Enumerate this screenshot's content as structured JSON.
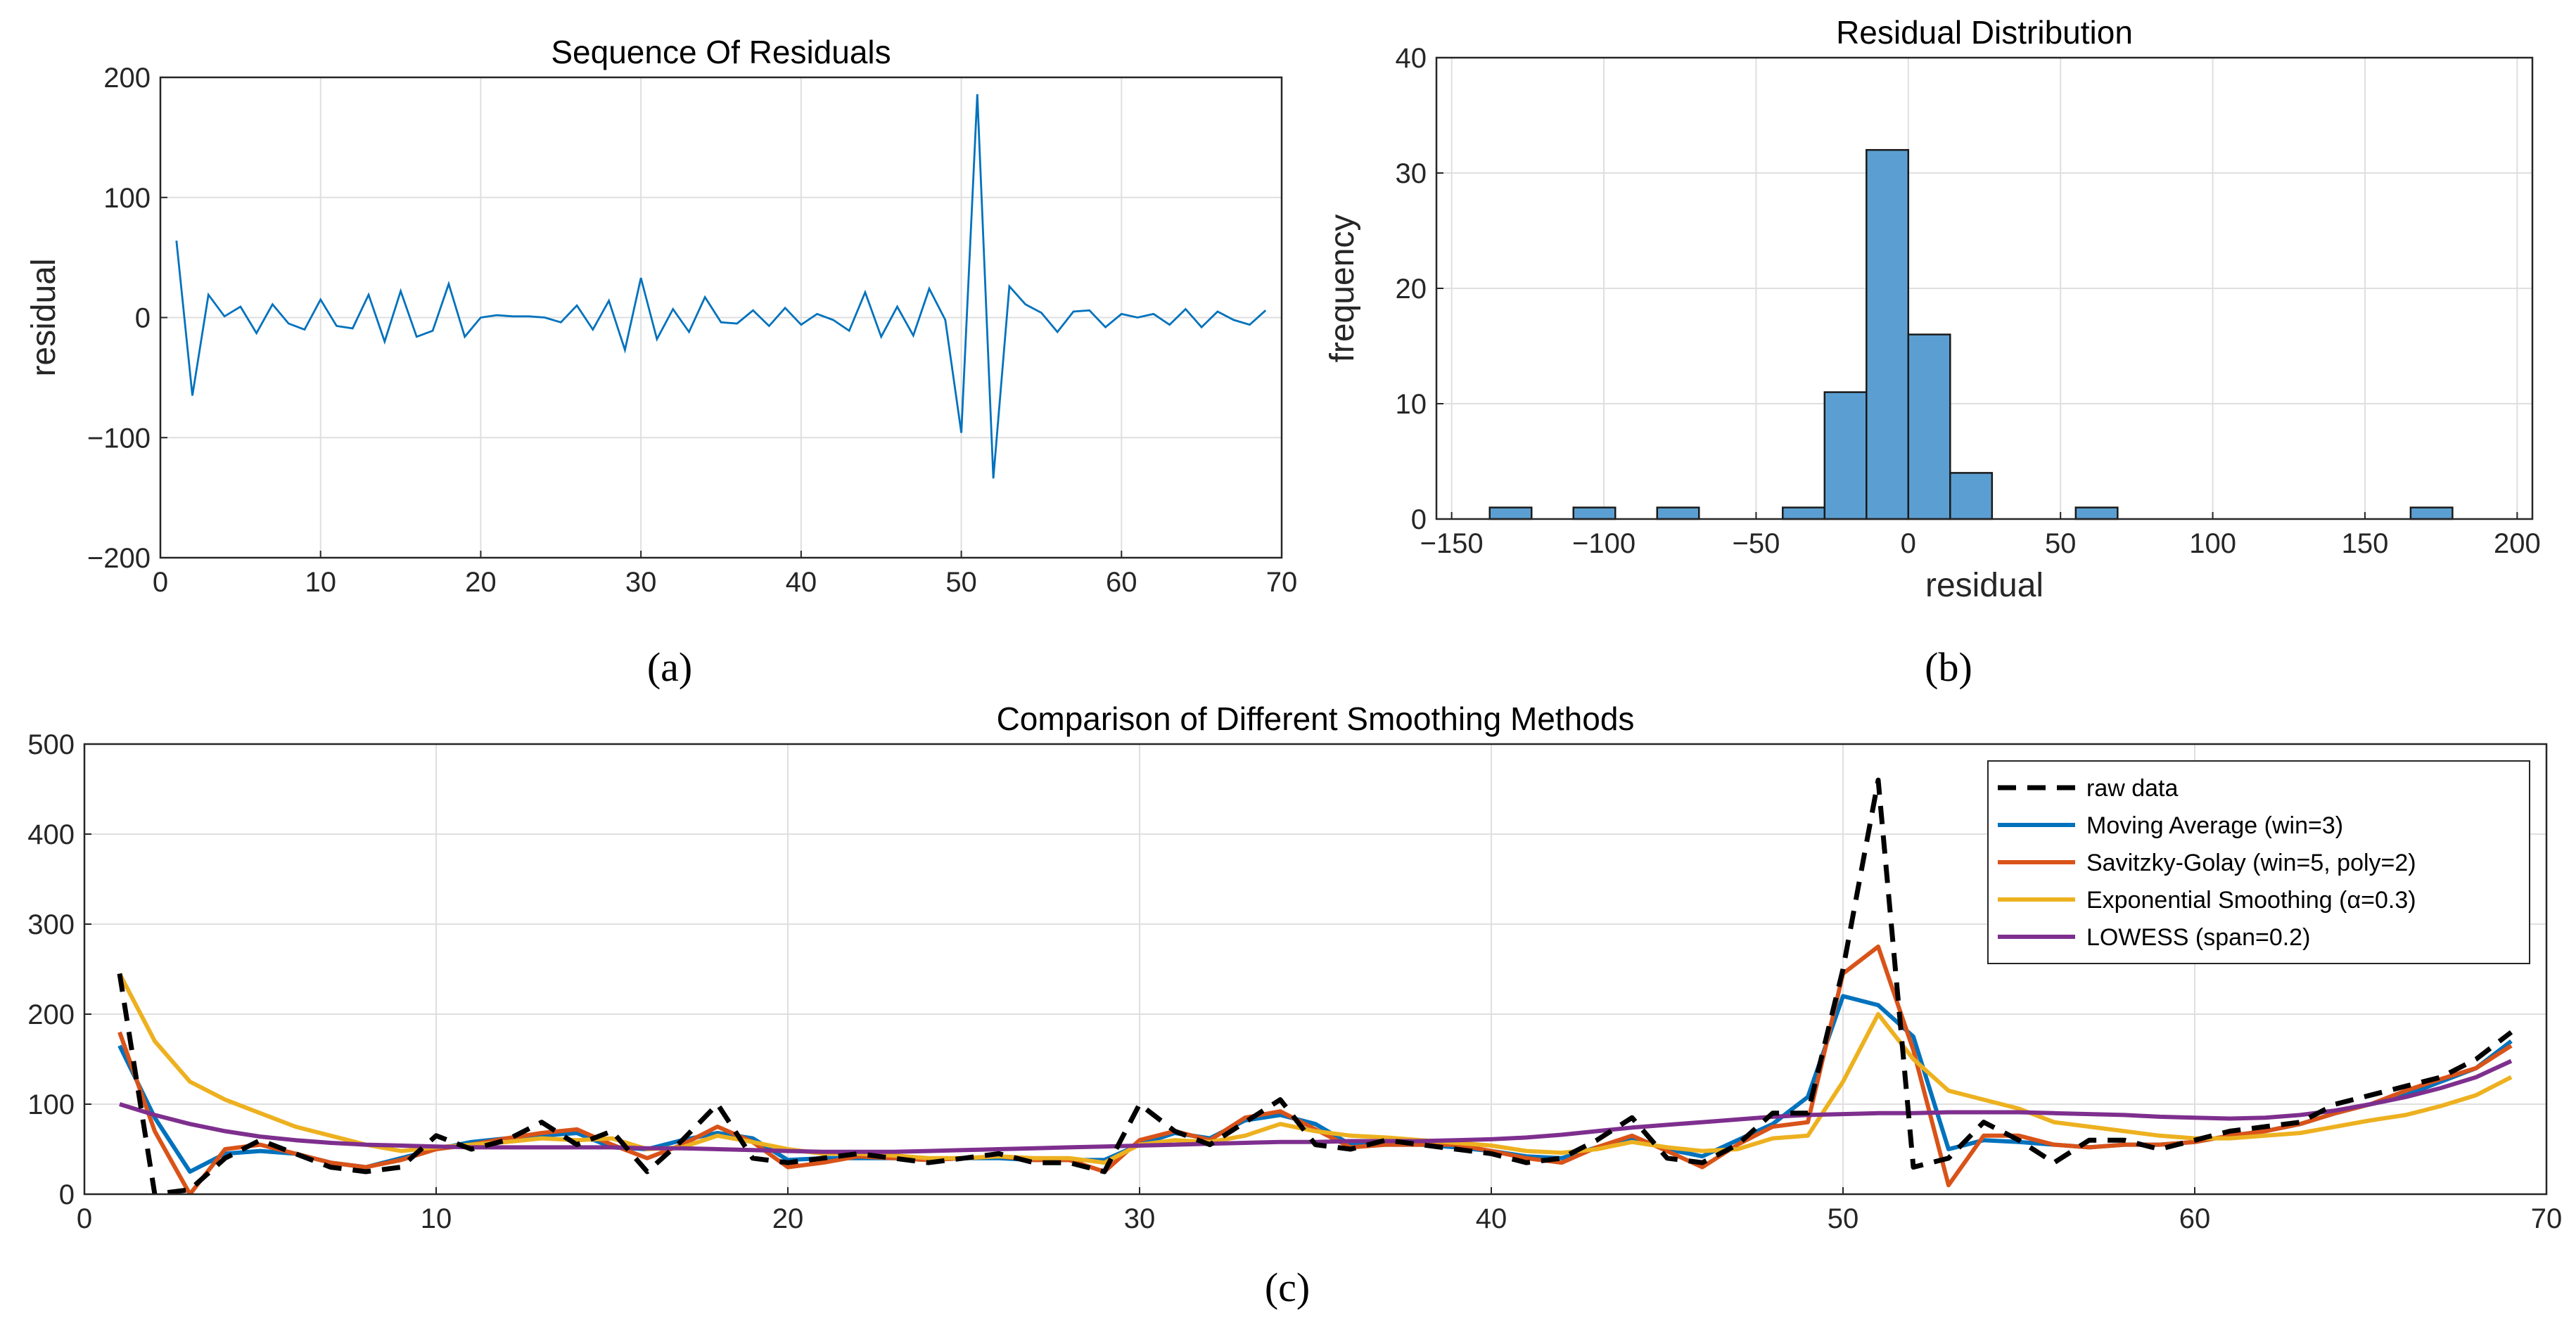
{
  "panels": {
    "a": "(a)",
    "b": "(b)",
    "c": "(c)"
  },
  "chart_data": [
    {
      "id": "a",
      "type": "line",
      "title": "Sequence Of Residuals",
      "xlabel": "",
      "ylabel": "residual",
      "xlim": [
        0,
        70
      ],
      "ylim": [
        -200,
        200
      ],
      "xticks": [
        0,
        10,
        20,
        30,
        40,
        50,
        60,
        70
      ],
      "yticks": [
        -200,
        -100,
        0,
        100,
        200
      ],
      "ytick_labels": [
        "−200",
        "−100",
        "0",
        "100",
        "200"
      ],
      "grid": true,
      "color": "#0072BD",
      "x": [
        1,
        2,
        3,
        4,
        5,
        6,
        7,
        8,
        9,
        10,
        11,
        12,
        13,
        14,
        15,
        16,
        17,
        18,
        19,
        20,
        21,
        22,
        23,
        24,
        25,
        26,
        27,
        28,
        29,
        30,
        31,
        32,
        33,
        34,
        35,
        36,
        37,
        38,
        39,
        40,
        41,
        42,
        43,
        44,
        45,
        46,
        47,
        48,
        49,
        50,
        51,
        52,
        53,
        54,
        55,
        56,
        57,
        58,
        59,
        60,
        61,
        62,
        63,
        64,
        65,
        66,
        67,
        68,
        69
      ],
      "y": [
        64,
        -65,
        19,
        1,
        9,
        -13,
        11,
        -5,
        -10,
        15,
        -7,
        -9,
        19,
        -20,
        22,
        -16,
        -11,
        28,
        -16,
        0,
        2,
        1,
        1,
        0,
        -4,
        10,
        -10,
        14,
        -27,
        33,
        -18,
        7,
        -12,
        17,
        -4,
        -5,
        6,
        -7,
        8,
        -6,
        3,
        -2,
        -11,
        21,
        -16,
        9,
        -15,
        24,
        -2,
        -96,
        186,
        -134,
        26,
        11,
        4,
        -12,
        5,
        6,
        -8,
        3,
        0,
        3,
        -6,
        7,
        -8,
        5,
        -2,
        -6,
        6
      ]
    },
    {
      "id": "b",
      "type": "bar",
      "title": "Residual Distribution",
      "xlabel": "residual",
      "ylabel": "frequency",
      "xlim": [
        -155,
        205
      ],
      "ylim": [
        0,
        40
      ],
      "xticks": [
        -150,
        -100,
        -50,
        0,
        50,
        100,
        150,
        200
      ],
      "xtick_labels": [
        "−150",
        "−100",
        "−50",
        "0",
        "50",
        "100",
        "150",
        "200"
      ],
      "yticks": [
        0,
        10,
        20,
        30,
        40
      ],
      "grid": true,
      "color": "#4DBEEE",
      "bin_width": 13.75,
      "bin_starts": [
        -137.5,
        -123.75,
        -110,
        -96.25,
        -82.5,
        -68.75,
        -55,
        -41.25,
        -27.5,
        -13.75,
        0,
        13.75,
        27.5,
        41.25,
        55,
        68.75,
        82.5,
        96.25,
        110,
        123.75,
        137.5,
        151.25,
        165,
        178.75
      ],
      "counts": [
        1,
        0,
        1,
        0,
        1,
        0,
        0,
        1,
        11,
        32,
        16,
        4,
        0,
        0,
        1,
        0,
        0,
        0,
        0,
        0,
        0,
        0,
        1,
        0
      ]
    },
    {
      "id": "c",
      "type": "line",
      "title": "Comparison of Different Smoothing Methods",
      "xlabel": "",
      "ylabel": "",
      "xlim": [
        0,
        70
      ],
      "ylim": [
        0,
        500
      ],
      "xticks": [
        0,
        10,
        20,
        30,
        40,
        50,
        60,
        70
      ],
      "yticks": [
        0,
        100,
        200,
        300,
        400,
        500
      ],
      "grid": true,
      "legend_position": "top-right",
      "x": [
        1,
        2,
        3,
        4,
        5,
        6,
        7,
        8,
        9,
        10,
        11,
        12,
        13,
        14,
        15,
        16,
        17,
        18,
        19,
        20,
        21,
        22,
        23,
        24,
        25,
        26,
        27,
        28,
        29,
        30,
        31,
        32,
        33,
        34,
        35,
        36,
        37,
        38,
        39,
        40,
        41,
        42,
        43,
        44,
        45,
        46,
        47,
        48,
        49,
        50,
        51,
        52,
        53,
        54,
        55,
        56,
        57,
        58,
        59,
        60,
        61,
        62,
        63,
        64,
        65,
        66,
        67,
        68,
        69
      ],
      "series": [
        {
          "name": "raw data",
          "color": "#000000",
          "dashed": true,
          "values": [
            245,
            0,
            5,
            40,
            60,
            45,
            30,
            25,
            30,
            65,
            50,
            60,
            80,
            55,
            70,
            25,
            60,
            100,
            40,
            35,
            40,
            45,
            40,
            35,
            40,
            45,
            35,
            35,
            25,
            100,
            70,
            55,
            80,
            105,
            55,
            50,
            60,
            55,
            50,
            45,
            35,
            40,
            60,
            85,
            40,
            35,
            55,
            90,
            90,
            250,
            460,
            30,
            40,
            80,
            60,
            35,
            60,
            60,
            50,
            60,
            70,
            75,
            80,
            100,
            110,
            120,
            130,
            150,
            180
          ]
        },
        {
          "name": "Moving Average (win=3)",
          "color": "#0072BD",
          "dashed": false,
          "values": [
            165,
            85,
            25,
            45,
            48,
            45,
            35,
            30,
            40,
            50,
            58,
            62,
            65,
            68,
            52,
            50,
            60,
            68,
            62,
            38,
            40,
            40,
            40,
            38,
            40,
            40,
            38,
            38,
            38,
            55,
            68,
            62,
            82,
            88,
            78,
            55,
            55,
            55,
            52,
            48,
            42,
            40,
            52,
            62,
            50,
            42,
            60,
            78,
            108,
            220,
            210,
            175,
            50,
            60,
            58,
            55,
            52,
            55,
            55,
            58,
            65,
            70,
            78,
            90,
            100,
            110,
            125,
            140,
            170
          ]
        },
        {
          "name": "Savitzky-Golay (win=5, poly=2)",
          "color": "#D95319",
          "dashed": false,
          "values": [
            180,
            70,
            0,
            50,
            55,
            45,
            35,
            30,
            38,
            50,
            55,
            62,
            68,
            72,
            55,
            40,
            55,
            75,
            58,
            30,
            35,
            42,
            40,
            38,
            40,
            42,
            38,
            38,
            25,
            60,
            70,
            60,
            85,
            92,
            72,
            52,
            55,
            55,
            55,
            48,
            40,
            35,
            52,
            65,
            48,
            30,
            55,
            75,
            80,
            245,
            275,
            160,
            10,
            65,
            65,
            55,
            52,
            55,
            55,
            58,
            65,
            70,
            78,
            90,
            100,
            115,
            128,
            140,
            165
          ]
        },
        {
          "name": "Exponential Smoothing (α=0.3)",
          "color": "#EDB120",
          "dashed": false,
          "values": [
            245,
            170,
            125,
            105,
            90,
            75,
            65,
            55,
            48,
            52,
            55,
            58,
            62,
            60,
            62,
            50,
            52,
            65,
            58,
            50,
            45,
            45,
            43,
            40,
            40,
            42,
            40,
            40,
            35,
            55,
            60,
            58,
            65,
            78,
            70,
            65,
            63,
            60,
            57,
            54,
            48,
            46,
            50,
            58,
            52,
            48,
            50,
            62,
            65,
            125,
            200,
            150,
            115,
            105,
            95,
            80,
            75,
            70,
            65,
            62,
            62,
            65,
            68,
            75,
            82,
            88,
            98,
            110,
            130
          ]
        },
        {
          "name": "LOWESS (span=0.2)",
          "color": "#7E2F8E",
          "dashed": false,
          "values": [
            100,
            88,
            78,
            70,
            64,
            60,
            57,
            55,
            54,
            53,
            52,
            52,
            52,
            52,
            52,
            51,
            51,
            50,
            49,
            48,
            47,
            47,
            47,
            48,
            49,
            50,
            51,
            52,
            53,
            54,
            55,
            56,
            57,
            58,
            58,
            59,
            59,
            59,
            60,
            61,
            63,
            66,
            70,
            74,
            77,
            80,
            83,
            86,
            88,
            89,
            90,
            90,
            91,
            91,
            91,
            90,
            89,
            88,
            86,
            85,
            84,
            85,
            88,
            93,
            100,
            108,
            118,
            130,
            148
          ]
        }
      ]
    }
  ]
}
